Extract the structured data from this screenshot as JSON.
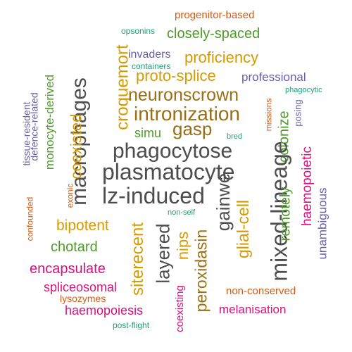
{
  "palette": {
    "gray": "#4d4d4d",
    "olive": "#9a6f15",
    "gold": "#d69a00",
    "green": "#4f9b2a",
    "magenta": "#d6127e",
    "purple": "#6b5ea8",
    "orange": "#d55a12",
    "teal": "#1f9e77"
  },
  "words": [
    {
      "text": "progenitor-based",
      "color": "orange"
    },
    {
      "text": "opsonins",
      "color": "teal"
    },
    {
      "text": "closely-spaced",
      "color": "green"
    },
    {
      "text": "croquemort",
      "color": "gold"
    },
    {
      "text": "invaders",
      "color": "purple"
    },
    {
      "text": "proficiency",
      "color": "gold"
    },
    {
      "text": "containers",
      "color": "teal"
    },
    {
      "text": "proto-splice",
      "color": "gold"
    },
    {
      "text": "professional",
      "color": "purple"
    },
    {
      "text": "tissue-resident",
      "color": "purple"
    },
    {
      "text": "defence-related",
      "color": "purple"
    },
    {
      "text": "monocyte-derived",
      "color": "green"
    },
    {
      "text": "macrophages",
      "color": "gray"
    },
    {
      "text": "neuronscrown",
      "color": "olive"
    },
    {
      "text": "phagocytic",
      "color": "teal"
    },
    {
      "text": "intronization",
      "color": "olive"
    },
    {
      "text": "missions",
      "color": "orange"
    },
    {
      "text": "posing",
      "color": "purple"
    },
    {
      "text": "coexisted",
      "color": "gold"
    },
    {
      "text": "simu",
      "color": "green"
    },
    {
      "text": "gasp",
      "color": "olive"
    },
    {
      "text": "bred",
      "color": "teal"
    },
    {
      "text": "colonize",
      "color": "green"
    },
    {
      "text": "phagocytose",
      "color": "gray"
    },
    {
      "text": "exonic",
      "color": "orange"
    },
    {
      "text": "haemopoietic",
      "color": "magenta"
    },
    {
      "text": "plasmatocyte",
      "color": "gray"
    },
    {
      "text": "confounded",
      "color": "orange"
    },
    {
      "text": "lz-induced",
      "color": "gray"
    },
    {
      "text": "gainwe",
      "color": "gray"
    },
    {
      "text": "mixed-lineage",
      "color": "gray"
    },
    {
      "text": "unambiguous",
      "color": "purple"
    },
    {
      "text": "remotely",
      "color": "green"
    },
    {
      "text": "non-self",
      "color": "teal"
    },
    {
      "text": "glial-cell",
      "color": "gold"
    },
    {
      "text": "bipotent",
      "color": "gold"
    },
    {
      "text": "sitere­cent",
      "color": "gold"
    },
    {
      "text": "layered",
      "color": "gray"
    },
    {
      "text": "nips",
      "color": "gold"
    },
    {
      "text": "peroxidasin",
      "color": "olive"
    },
    {
      "text": "chotard",
      "color": "green"
    },
    {
      "text": "encapsulate",
      "color": "magenta"
    },
    {
      "text": "spliceosomal",
      "color": "magenta"
    },
    {
      "text": "coexisting",
      "color": "magenta"
    },
    {
      "text": "non-conserved",
      "color": "orange"
    },
    {
      "text": "lysozymes",
      "color": "orange"
    },
    {
      "text": "haemopoiesis",
      "color": "magenta"
    },
    {
      "text": "melanisation",
      "color": "magenta"
    },
    {
      "text": "post-flight",
      "color": "teal"
    }
  ]
}
